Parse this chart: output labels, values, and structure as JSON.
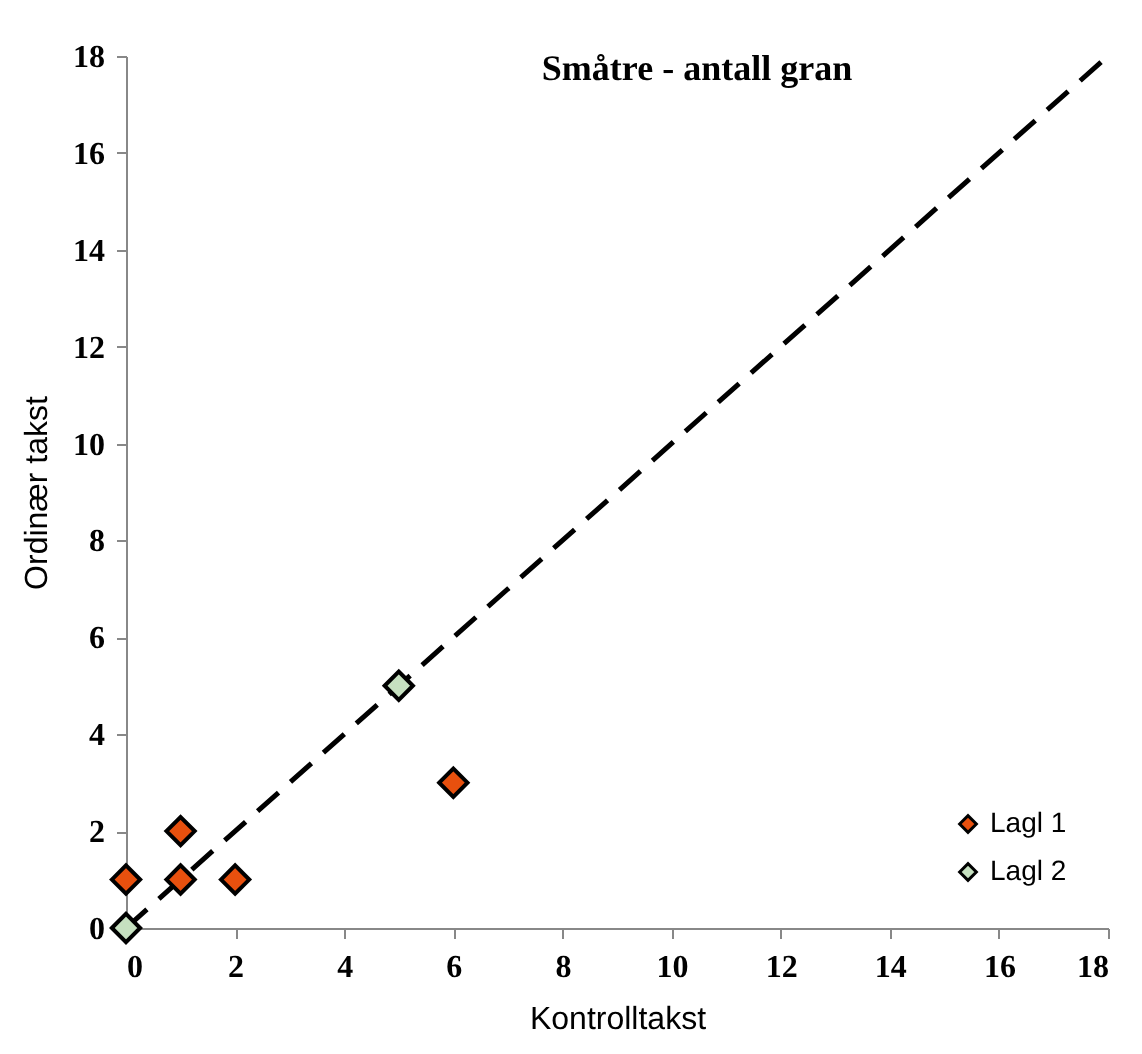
{
  "chart_data": {
    "type": "scatter",
    "title": "Småtre - antall gran",
    "xlabel": "Kontrolltakst",
    "ylabel": "Ordinær takst",
    "xlim": [
      0,
      18
    ],
    "ylim": [
      0,
      18
    ],
    "xticks": [
      0,
      2,
      4,
      6,
      8,
      10,
      12,
      14,
      16,
      18
    ],
    "yticks": [
      0,
      2,
      4,
      6,
      8,
      10,
      12,
      14,
      16,
      18
    ],
    "grid": false,
    "legend": "bottom right",
    "marker": "diamond",
    "line_style": "dashed",
    "series": [
      {
        "name": "Lagl 1",
        "color": "#e8500e",
        "x": [
          0,
          1,
          1,
          2,
          6
        ],
        "values": [
          1,
          2,
          1,
          1,
          3
        ]
      },
      {
        "name": "Lagl 2",
        "color": "#c6e0c0",
        "x": [
          0,
          5
        ],
        "values": [
          0,
          5
        ]
      },
      {
        "type": "line",
        "color": "#000000",
        "marker": "none",
        "x": [
          0,
          18
        ],
        "values": [
          0,
          18
        ]
      }
    ]
  }
}
